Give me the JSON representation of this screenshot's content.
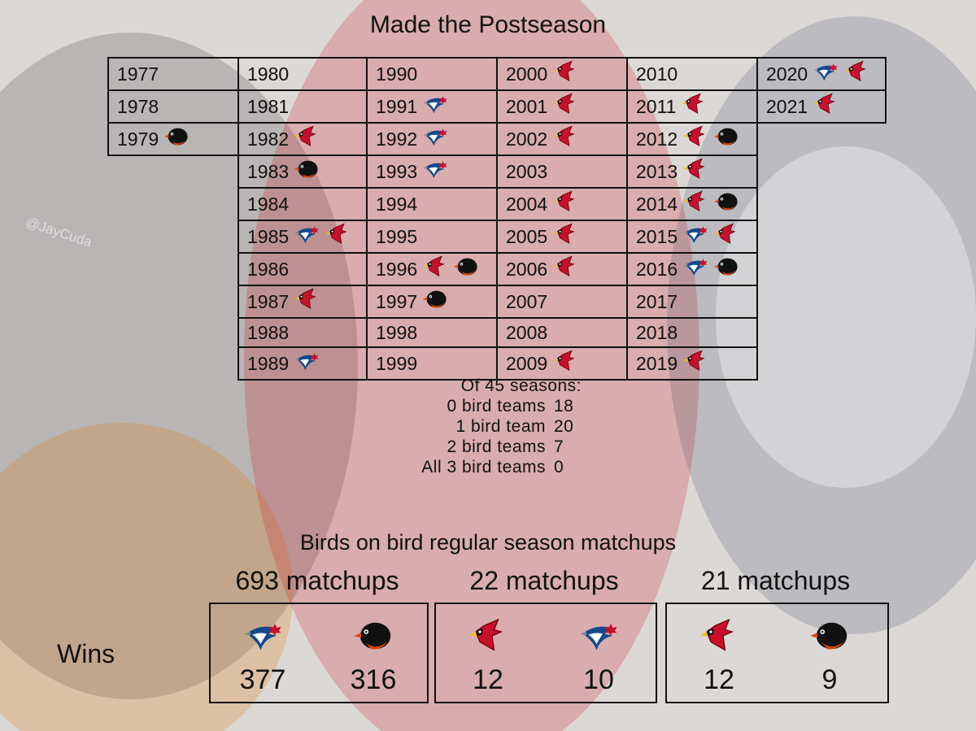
{
  "title": "Made the Postseason",
  "watermark": "@JayCuda",
  "years_table": {
    "columns": [
      [
        {
          "year": "1977",
          "teams": []
        },
        {
          "year": "1978",
          "teams": []
        },
        {
          "year": "1979",
          "teams": [
            "orioles"
          ]
        }
      ],
      [
        {
          "year": "1980",
          "teams": []
        },
        {
          "year": "1981",
          "teams": []
        },
        {
          "year": "1982",
          "teams": [
            "cardinals"
          ]
        },
        {
          "year": "1983",
          "teams": [
            "orioles"
          ]
        },
        {
          "year": "1984",
          "teams": []
        },
        {
          "year": "1985",
          "teams": [
            "blue-jays",
            "cardinals"
          ]
        },
        {
          "year": "1986",
          "teams": []
        },
        {
          "year": "1987",
          "teams": [
            "cardinals"
          ]
        },
        {
          "year": "1988",
          "teams": []
        },
        {
          "year": "1989",
          "teams": [
            "blue-jays"
          ]
        }
      ],
      [
        {
          "year": "1990",
          "teams": []
        },
        {
          "year": "1991",
          "teams": [
            "blue-jays"
          ]
        },
        {
          "year": "1992",
          "teams": [
            "blue-jays"
          ]
        },
        {
          "year": "1993",
          "teams": [
            "blue-jays"
          ]
        },
        {
          "year": "1994",
          "teams": []
        },
        {
          "year": "1995",
          "teams": []
        },
        {
          "year": "1996",
          "teams": [
            "cardinals",
            "orioles"
          ]
        },
        {
          "year": "1997",
          "teams": [
            "orioles"
          ]
        },
        {
          "year": "1998",
          "teams": []
        },
        {
          "year": "1999",
          "teams": []
        }
      ],
      [
        {
          "year": "2000",
          "teams": [
            "cardinals"
          ]
        },
        {
          "year": "2001",
          "teams": [
            "cardinals"
          ]
        },
        {
          "year": "2002",
          "teams": [
            "cardinals"
          ]
        },
        {
          "year": "2003",
          "teams": []
        },
        {
          "year": "2004",
          "teams": [
            "cardinals"
          ]
        },
        {
          "year": "2005",
          "teams": [
            "cardinals"
          ]
        },
        {
          "year": "2006",
          "teams": [
            "cardinals"
          ]
        },
        {
          "year": "2007",
          "teams": []
        },
        {
          "year": "2008",
          "teams": []
        },
        {
          "year": "2009",
          "teams": [
            "cardinals"
          ]
        }
      ],
      [
        {
          "year": "2010",
          "teams": []
        },
        {
          "year": "2011",
          "teams": [
            "cardinals"
          ]
        },
        {
          "year": "2012",
          "teams": [
            "cardinals",
            "orioles"
          ]
        },
        {
          "year": "2013",
          "teams": [
            "cardinals"
          ]
        },
        {
          "year": "2014",
          "teams": [
            "cardinals",
            "orioles"
          ]
        },
        {
          "year": "2015",
          "teams": [
            "blue-jays",
            "cardinals"
          ]
        },
        {
          "year": "2016",
          "teams": [
            "blue-jays",
            "orioles"
          ]
        },
        {
          "year": "2017",
          "teams": []
        },
        {
          "year": "2018",
          "teams": []
        },
        {
          "year": "2019",
          "teams": [
            "cardinals"
          ]
        }
      ],
      [
        {
          "year": "2020",
          "teams": [
            "blue-jays",
            "cardinals"
          ]
        },
        {
          "year": "2021",
          "teams": [
            "cardinals"
          ]
        }
      ]
    ]
  },
  "summary": {
    "header": "Of 45 seasons:",
    "rows": [
      {
        "label": "0 bird teams",
        "value": "18"
      },
      {
        "label": "1 bird team",
        "value": "20"
      },
      {
        "label": "2 bird teams",
        "value": "7"
      },
      {
        "label": "All 3 bird teams",
        "value": "0"
      }
    ]
  },
  "matchups": {
    "title": "Birds on bird regular season matchups",
    "wins_label": "Wins",
    "groups": [
      {
        "label": "693 matchups",
        "teams": [
          {
            "team": "blue-jays",
            "wins": "377"
          },
          {
            "team": "orioles",
            "wins": "316"
          }
        ]
      },
      {
        "label": "22 matchups",
        "teams": [
          {
            "team": "cardinals",
            "wins": "12"
          },
          {
            "team": "blue-jays",
            "wins": "10"
          }
        ]
      },
      {
        "label": "21 matchups",
        "teams": [
          {
            "team": "cardinals",
            "wins": "12"
          },
          {
            "team": "orioles",
            "wins": "9"
          }
        ]
      }
    ]
  },
  "colors": {
    "cardinals": "#c8102e",
    "blue_jays": "#134a8e",
    "orioles_black": "#111111",
    "orioles_orange": "#df4601"
  }
}
